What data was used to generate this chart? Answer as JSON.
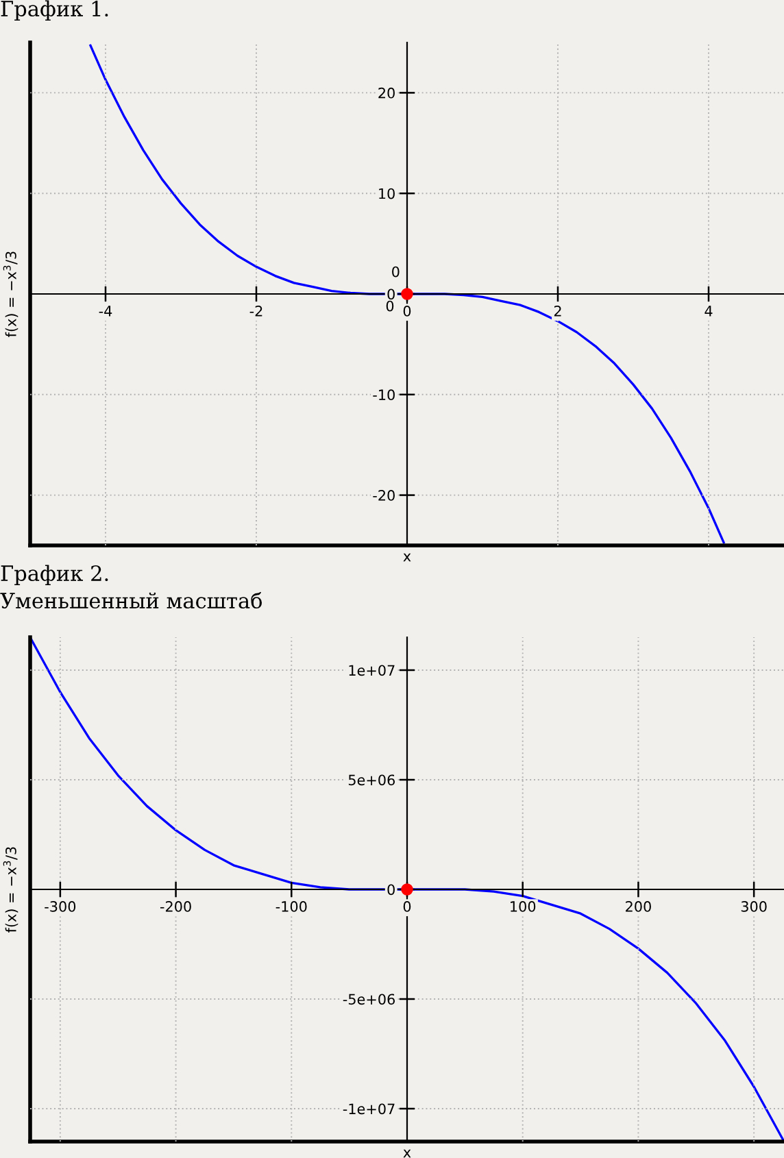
{
  "chart_data": [
    {
      "type": "line",
      "title": "График 1.",
      "xlabel": "x",
      "ylabel": "f(x) = −x$^{3}$/3",
      "xlim": [
        -5,
        5
      ],
      "ylim": [
        -25,
        25
      ],
      "xticks": [
        -4,
        -2,
        0,
        2,
        4
      ],
      "yticks": [
        -20,
        -10,
        0,
        10,
        20
      ],
      "grid": true,
      "annotations": [
        {
          "text": "0",
          "x": 0,
          "y": 0
        },
        {
          "text": "0",
          "x": 0,
          "y": 0
        }
      ],
      "series": [
        {
          "color": "#0000ff",
          "x": [
            -4.2,
            -4,
            -3.75,
            -3.5,
            -3.25,
            -3,
            -2.75,
            -2.5,
            -2.25,
            -2,
            -1.75,
            -1.5,
            -1.25,
            -1,
            -0.75,
            -0.5,
            -0.25,
            0,
            0.25,
            0.5,
            0.75,
            1,
            1.25,
            1.5,
            1.75,
            2,
            2.25,
            2.5,
            2.75,
            3,
            3.25,
            3.5,
            3.75,
            4,
            4.2
          ],
          "values": [
            24.7,
            21.3,
            17.6,
            14.3,
            11.4,
            9,
            6.9,
            5.2,
            3.8,
            2.7,
            1.8,
            1.1,
            0.7,
            0.3,
            0.1,
            0,
            0,
            0,
            0,
            0,
            -0.1,
            -0.3,
            -0.7,
            -1.1,
            -1.8,
            -2.7,
            -3.8,
            -5.2,
            -6.9,
            -9,
            -11.4,
            -14.3,
            -17.6,
            -21.3,
            -24.7
          ]
        },
        {
          "type": "scatter",
          "color": "#ff0000",
          "marker": "circle",
          "x": [
            0
          ],
          "values": [
            0
          ]
        }
      ]
    },
    {
      "type": "line",
      "title": "График 2.",
      "subtitle": "Уменьшенный масштаб",
      "xlabel": "x",
      "ylabel": "f(x) = −x$^{3}$/3",
      "xlim": [
        -326,
        326
      ],
      "ylim": [
        -11500000,
        11500000
      ],
      "xticks": [
        -300,
        -200,
        -100,
        0,
        100,
        200,
        300
      ],
      "yticks": [
        {
          "value": -10000000,
          "label": "-1e+07"
        },
        {
          "value": -5000000,
          "label": "-5e+06"
        },
        0,
        {
          "value": 5000000,
          "label": "5e+06"
        },
        {
          "value": 10000000,
          "label": "1e+07"
        }
      ],
      "grid": true,
      "series": [
        {
          "color": "#0000ff",
          "x": [
            -325,
            -300,
            -275,
            -250,
            -225,
            -200,
            -175,
            -150,
            -125,
            -100,
            -75,
            -50,
            -25,
            0,
            25,
            50,
            75,
            100,
            125,
            150,
            175,
            200,
            225,
            250,
            275,
            300,
            325
          ],
          "values": [
            11400000,
            9000000,
            6900000,
            5200000,
            3800000,
            2700000,
            1800000,
            1100000,
            700000,
            300000,
            100000,
            0,
            0,
            0,
            0,
            0,
            -100000,
            -300000,
            -700000,
            -1100000,
            -1800000,
            -2700000,
            -3800000,
            -5200000,
            -6900000,
            -9000000,
            -11400000
          ]
        },
        {
          "type": "scatter",
          "color": "#ff0000",
          "marker": "circle",
          "x": [
            0
          ],
          "values": [
            0
          ]
        }
      ]
    }
  ]
}
